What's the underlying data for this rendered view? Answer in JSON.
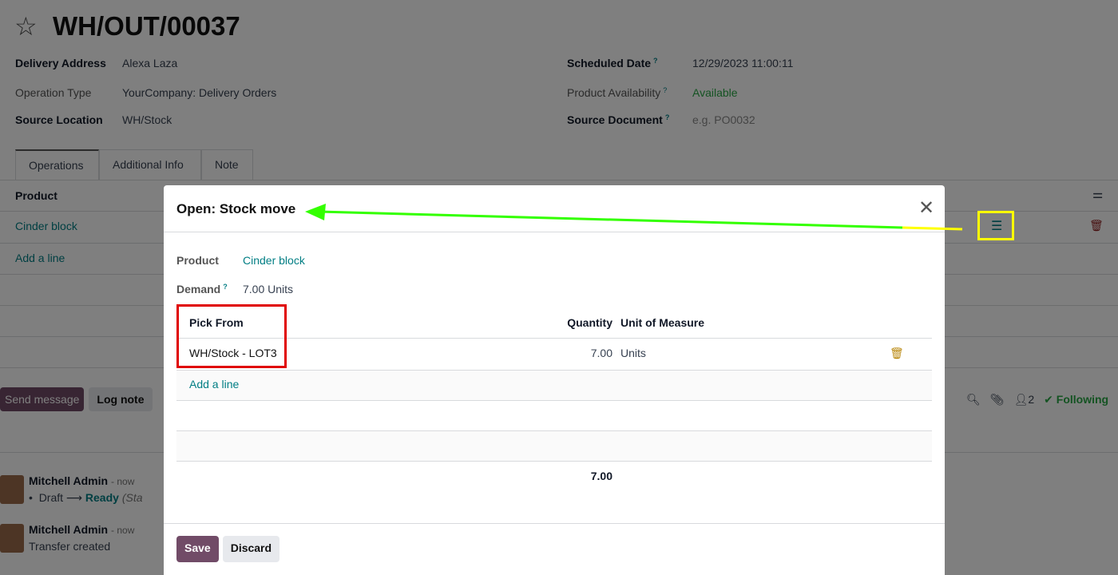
{
  "record": {
    "title": "WH/OUT/00037",
    "fields_left": [
      {
        "label": "Delivery Address",
        "value": "Alexa Laza"
      },
      {
        "label": "Operation Type",
        "value": "YourCompany: Delivery Orders"
      },
      {
        "label": "Source Location",
        "value": "WH/Stock"
      }
    ],
    "fields_right": [
      {
        "label": "Scheduled Date",
        "value": "12/29/2023 11:00:11"
      },
      {
        "label": "Product Availability",
        "value": "Available"
      },
      {
        "label": "Source Document",
        "placeholder": "e.g. PO0032"
      }
    ],
    "help_mark": "?"
  },
  "tabs": [
    "Operations",
    "Additional Info",
    "Note"
  ],
  "operations": {
    "header_product": "Product",
    "rows": [
      {
        "product": "Cinder block"
      }
    ],
    "add_line": "Add a line"
  },
  "chatter": {
    "send_message": "Send message",
    "log_note": "Log note",
    "followers_count": "2",
    "following": "Following",
    "messages": [
      {
        "author": "Mitchell Admin",
        "time": "- now",
        "from": "Draft",
        "to": "Ready",
        "note": "(Sta"
      },
      {
        "author": "Mitchell Admin",
        "time": "- now",
        "body": "Transfer created"
      }
    ]
  },
  "modal": {
    "title": "Open: Stock move",
    "product_label": "Product",
    "product_value": "Cinder block",
    "demand_label": "Demand",
    "demand_value": "7.00",
    "demand_unit": "Units",
    "columns": [
      "Pick From",
      "Quantity",
      "Unit of Measure"
    ],
    "lines": [
      {
        "pick_from": "WH/Stock - LOT3",
        "quantity": "7.00",
        "uom": "Units"
      }
    ],
    "add_line": "Add a line",
    "total": "7.00",
    "save": "Save",
    "discard": "Discard"
  },
  "colors": {
    "primary": "#714b67",
    "link": "#017e84",
    "available": "#28a745",
    "annotation_red": "#e00000",
    "annotation_yellow": "#ffff00",
    "annotation_arrow": "#33ff00"
  }
}
